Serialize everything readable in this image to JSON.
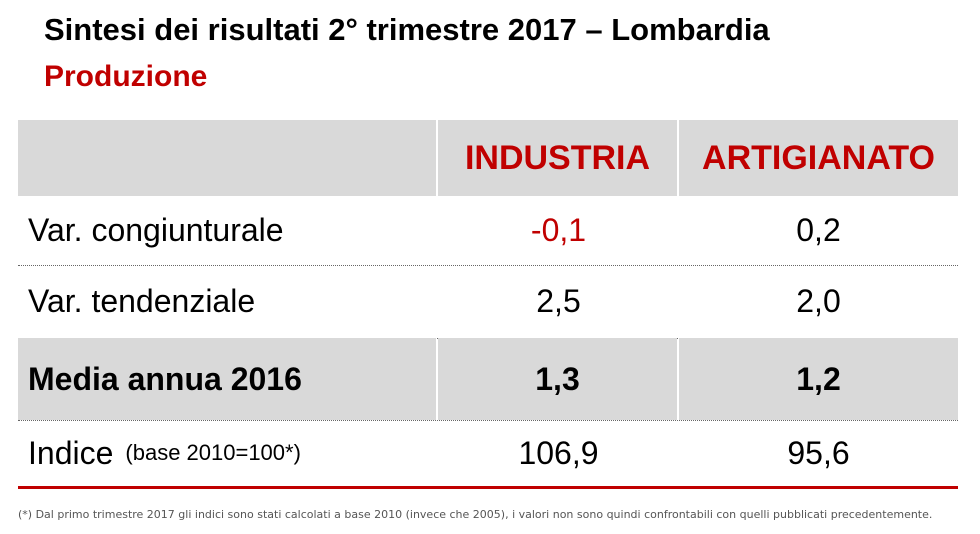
{
  "header": {
    "title": "Sintesi dei risultati 2° trimestre 2017 – Lombardia",
    "subtitle": "Produzione"
  },
  "table": {
    "columns": [
      "INDUSTRIA",
      "ARTIGIANATO"
    ],
    "rows": [
      {
        "label": "Var. congiunturale",
        "values": [
          "-0,1",
          "0,2"
        ]
      },
      {
        "label": "Var. tendenziale",
        "values": [
          "2,5",
          "2,0"
        ]
      },
      {
        "label": "Media annua 2016",
        "values": [
          "1,3",
          "1,2"
        ]
      },
      {
        "label": "Indice",
        "note": "(base 2010=100*)",
        "values": [
          "106,9",
          "95,6"
        ]
      }
    ]
  },
  "footnote": "(*) Dal primo trimestre 2017 gli indici sono stati calcolati a base 2010 (invece che 2005), i valori non sono quindi confrontabili con quelli pubblicati precedentemente."
}
